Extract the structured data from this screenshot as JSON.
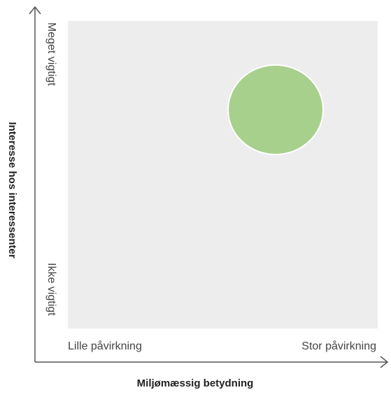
{
  "diagram": {
    "y_axis_title": "Interesse hos interessenter",
    "x_axis_title": "Miljømæssig betydning",
    "y_high_label": "Meget vigtigt",
    "y_low_label": "Ikke vigtigt",
    "x_low_label": "Lille påvirkning",
    "x_high_label": "Stor påvirkning"
  }
}
